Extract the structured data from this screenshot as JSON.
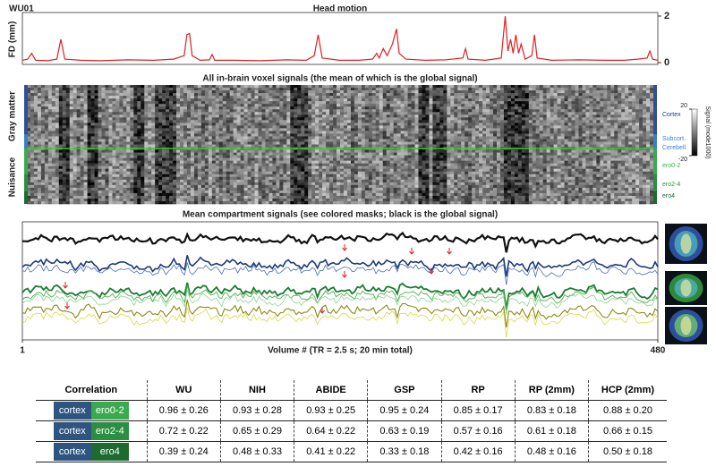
{
  "chart_data": [
    {
      "type": "line",
      "label": "WU01",
      "title": "Head motion",
      "y_label": "FD (mm)",
      "x": [
        1,
        5,
        8,
        11,
        20,
        27,
        30,
        33,
        45,
        60,
        80,
        100,
        115,
        123,
        125,
        127,
        129,
        135,
        142,
        144,
        146,
        160,
        180,
        200,
        215,
        221,
        224,
        227,
        240,
        255,
        265,
        268,
        270,
        273,
        276,
        280,
        283,
        285,
        290,
        305,
        320,
        333,
        335,
        337,
        350,
        362,
        365,
        367,
        369,
        371,
        373,
        375,
        377,
        380,
        385,
        387,
        389,
        400,
        420,
        440,
        455,
        465,
        472,
        474,
        476,
        480
      ],
      "values": [
        0.1,
        0.15,
        0.4,
        0.1,
        0.08,
        0.15,
        1.0,
        0.15,
        0.1,
        0.08,
        0.12,
        0.1,
        0.15,
        0.3,
        1.2,
        1.25,
        0.3,
        0.1,
        0.12,
        0.35,
        0.1,
        0.1,
        0.08,
        0.12,
        0.1,
        0.3,
        1.2,
        0.2,
        0.1,
        0.1,
        0.15,
        0.4,
        0.2,
        0.6,
        0.3,
        0.8,
        1.45,
        0.4,
        0.15,
        0.1,
        0.12,
        0.2,
        0.6,
        0.15,
        0.1,
        0.2,
        2.0,
        0.5,
        1.0,
        0.4,
        1.2,
        0.4,
        0.8,
        0.15,
        0.3,
        1.2,
        0.2,
        0.1,
        0.12,
        0.1,
        0.1,
        0.15,
        0.2,
        0.5,
        0.15,
        0.1
      ],
      "color": "#e02020",
      "xlim": [
        1,
        480
      ],
      "ylim": [
        0,
        2
      ],
      "yticks": [
        0,
        2
      ]
    },
    {
      "type": "heatmap",
      "title": "All in-brain voxel signals (the mean of which is the global signal)",
      "groups": [
        "Gray matter",
        "Nuisance"
      ],
      "row_labels": [
        "Cortex",
        "Subcort.",
        "Cerebell.",
        "ero0-2",
        "ero2-4",
        "ero4"
      ],
      "colorbar_label": "Signal (mode1000)",
      "colorbar_lim": [
        -20,
        20
      ],
      "colorbar_ticks": [
        -20,
        20
      ]
    },
    {
      "type": "line",
      "title": "Mean compartment signals (see colored masks; black is the global signal)",
      "x_label": "Volume # (TR = 2.5 s; 20 min total)",
      "xlim": [
        1,
        480
      ],
      "xticks": [
        1,
        480
      ]
    }
  ],
  "table": {
    "header": [
      "Correlation",
      "WU",
      "NIH",
      "ABIDE",
      "GSP",
      "RP",
      "RP (2mm)",
      "HCP (2mm)"
    ],
    "rows": [
      {
        "compartments": [
          "cortex",
          "ero0-2"
        ],
        "cells": [
          "0.96 ± 0.26",
          "0.93 ± 0.28",
          "0.93 ± 0.25",
          "0.95 ± 0.24",
          "0.85 ± 0.17",
          "0.83 ± 0.18",
          "0.88 ± 0.20"
        ]
      },
      {
        "compartments": [
          "cortex",
          "ero2-4"
        ],
        "cells": [
          "0.72 ± 0.22",
          "0.65 ± 0.29",
          "0.64 ± 0.22",
          "0.63 ± 0.19",
          "0.57 ± 0.16",
          "0.61 ± 0.18",
          "0.66 ± 0.15"
        ]
      },
      {
        "compartments": [
          "cortex",
          "ero4"
        ],
        "cells": [
          "0.39 ± 0.24",
          "0.48 ± 0.33",
          "0.41 ± 0.22",
          "0.33 ± 0.18",
          "0.42 ± 0.16",
          "0.48 ± 0.16",
          "0.50 ± 0.18"
        ]
      }
    ]
  }
}
